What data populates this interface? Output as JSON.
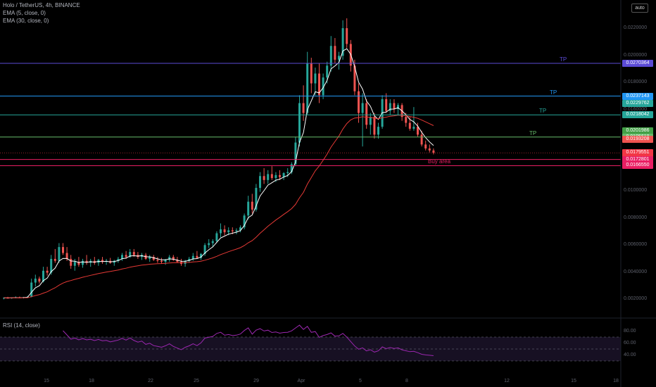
{
  "header": {
    "line1": "Holo / TetherUS, 4h, BINANCE",
    "line2": "EMA (5, close, 0)",
    "line3": "EMA (30, close, 0)",
    "scale_button": "auto"
  },
  "rsi_label": "RSI (14, close)",
  "annotations": {
    "tp": "TP",
    "buy_area": "Buy area"
  },
  "colors": {
    "up": "#26a69a",
    "down": "#ef5350",
    "ema_fast": "#ffffff",
    "ema_slow": "#e53935",
    "rsi": "#9c27b0",
    "tp1": "#5b4bd6",
    "tp2": "#2196f3",
    "tp3": "#26a69a",
    "tp4": "#66bb6a",
    "buy": "#e91e63"
  },
  "chart_data": {
    "type": "candlestick",
    "price_axis": {
      "ticks": [
        "0.0220000",
        "0.0200000",
        "0.0180000",
        "0.0160000",
        "0.0140000",
        "0.0120000",
        "0.0100000",
        "0.0080000",
        "0.0060000",
        "0.0040000",
        "0.0020000"
      ]
    },
    "x_ticks": [
      "15",
      "18",
      "22",
      "25",
      "29",
      "Apr",
      "5",
      "8",
      "12",
      "15",
      "18",
      "22"
    ],
    "levels": [
      {
        "label": "0.0270364",
        "value": 0.0270364,
        "color": "#5b4bd6",
        "line": true,
        "tp": true
      },
      {
        "label": "0.0237143",
        "value": 0.0237143,
        "color": "#2196f3",
        "line": true,
        "tp": true
      },
      {
        "label": "0.0229762",
        "value": 0.0229762,
        "color": "#26a69a",
        "line": false,
        "tp": false
      },
      {
        "label": "0.0218042",
        "value": 0.0218042,
        "color": "#26a69a",
        "line": true,
        "tp": true
      },
      {
        "label": "0.0201986",
        "value": 0.0201986,
        "color": "#43a047",
        "line": false,
        "tp": false
      },
      {
        "label": "0.0195618",
        "value": 0.0195618,
        "color": "#66bb6a",
        "line": true,
        "tp": true
      },
      {
        "label": "0.0193208",
        "value": 0.0193208,
        "color": "#ef5350",
        "line": false,
        "tp": false
      },
      {
        "label": "0.0179551",
        "sub": "18:43",
        "value": 0.0179551,
        "color": "#f23645",
        "line": false,
        "tp": false
      },
      {
        "label": "0.0172801",
        "value": 0.0172801,
        "color": "#e91e63",
        "line": true,
        "tp": false
      },
      {
        "label": "0.0166550",
        "value": 0.016655,
        "color": "#e91e63",
        "line": true,
        "tp": false
      }
    ],
    "rsi": {
      "levels": [
        70,
        50,
        30
      ],
      "tick_labels": [
        "80.00",
        "60.00",
        "40.00"
      ]
    },
    "candles": [
      [
        0.0032,
        0.0033,
        0.0031,
        0.00325
      ],
      [
        0.00325,
        0.00335,
        0.00318,
        0.00322
      ],
      [
        0.00322,
        0.0033,
        0.00315,
        0.00328
      ],
      [
        0.00328,
        0.0034,
        0.0032,
        0.0033
      ],
      [
        0.0033,
        0.00338,
        0.00322,
        0.00324
      ],
      [
        0.00324,
        0.00335,
        0.00318,
        0.00332
      ],
      [
        0.00332,
        0.00345,
        0.00325,
        0.00335
      ],
      [
        0.00335,
        0.0052,
        0.0033,
        0.0048
      ],
      [
        0.0048,
        0.0056,
        0.0044,
        0.0052
      ],
      [
        0.0052,
        0.0054,
        0.0047,
        0.0049
      ],
      [
        0.0049,
        0.0064,
        0.0048,
        0.006
      ],
      [
        0.006,
        0.0064,
        0.0055,
        0.0058
      ],
      [
        0.0058,
        0.0076,
        0.0056,
        0.0072
      ],
      [
        0.0072,
        0.0082,
        0.0068,
        0.007
      ],
      [
        0.007,
        0.0088,
        0.0068,
        0.0084
      ],
      [
        0.0084,
        0.0088,
        0.0076,
        0.0078
      ],
      [
        0.0078,
        0.0084,
        0.007,
        0.0072
      ],
      [
        0.0072,
        0.0076,
        0.0062,
        0.0065
      ],
      [
        0.0065,
        0.0072,
        0.006,
        0.0069
      ],
      [
        0.0069,
        0.0074,
        0.0064,
        0.0066
      ],
      [
        0.0066,
        0.0072,
        0.0063,
        0.007
      ],
      [
        0.007,
        0.0076,
        0.0066,
        0.0068
      ],
      [
        0.0068,
        0.0072,
        0.0064,
        0.007
      ],
      [
        0.007,
        0.0074,
        0.0066,
        0.0068
      ],
      [
        0.0068,
        0.0072,
        0.0065,
        0.0071
      ],
      [
        0.0071,
        0.0074,
        0.0067,
        0.0069
      ],
      [
        0.0069,
        0.0072,
        0.0066,
        0.007
      ],
      [
        0.007,
        0.0073,
        0.0067,
        0.0068
      ],
      [
        0.0068,
        0.0071,
        0.0065,
        0.007
      ],
      [
        0.007,
        0.0074,
        0.0068,
        0.0072
      ],
      [
        0.0072,
        0.0078,
        0.007,
        0.0076
      ],
      [
        0.0076,
        0.008,
        0.0072,
        0.0074
      ],
      [
        0.0074,
        0.0082,
        0.0073,
        0.0079
      ],
      [
        0.0079,
        0.0082,
        0.0074,
        0.0076
      ],
      [
        0.0076,
        0.0079,
        0.0072,
        0.0074
      ],
      [
        0.0074,
        0.0078,
        0.0071,
        0.0076
      ],
      [
        0.0076,
        0.0078,
        0.0071,
        0.0072
      ],
      [
        0.0072,
        0.0076,
        0.0069,
        0.0074
      ],
      [
        0.0074,
        0.0076,
        0.007,
        0.0071
      ],
      [
        0.0071,
        0.0074,
        0.0068,
        0.007
      ],
      [
        0.007,
        0.0073,
        0.0067,
        0.0069
      ],
      [
        0.0069,
        0.0072,
        0.0066,
        0.0071
      ],
      [
        0.0071,
        0.0076,
        0.0069,
        0.0074
      ],
      [
        0.0074,
        0.0076,
        0.007,
        0.0071
      ],
      [
        0.0071,
        0.0074,
        0.0068,
        0.0069
      ],
      [
        0.0069,
        0.0072,
        0.0065,
        0.0067
      ],
      [
        0.0067,
        0.0071,
        0.0064,
        0.007
      ],
      [
        0.007,
        0.0074,
        0.0068,
        0.0072
      ],
      [
        0.0072,
        0.0078,
        0.007,
        0.0075
      ],
      [
        0.0075,
        0.008,
        0.0072,
        0.0073
      ],
      [
        0.0073,
        0.0078,
        0.0071,
        0.0077
      ],
      [
        0.0077,
        0.0088,
        0.0075,
        0.0086
      ],
      [
        0.0086,
        0.0092,
        0.0083,
        0.0088
      ],
      [
        0.0088,
        0.0092,
        0.0084,
        0.009
      ],
      [
        0.009,
        0.01,
        0.0088,
        0.0098
      ],
      [
        0.0098,
        0.0108,
        0.0094,
        0.0102
      ],
      [
        0.0102,
        0.0106,
        0.0096,
        0.0099
      ],
      [
        0.0099,
        0.0104,
        0.0096,
        0.0101
      ],
      [
        0.0101,
        0.0104,
        0.0097,
        0.01
      ],
      [
        0.01,
        0.0103,
        0.0097,
        0.0101
      ],
      [
        0.0101,
        0.0106,
        0.0099,
        0.0104
      ],
      [
        0.0104,
        0.0118,
        0.0102,
        0.0116
      ],
      [
        0.0116,
        0.0136,
        0.0112,
        0.013
      ],
      [
        0.013,
        0.0138,
        0.0118,
        0.0122
      ],
      [
        0.0122,
        0.0148,
        0.012,
        0.0144
      ],
      [
        0.0144,
        0.016,
        0.014,
        0.0156
      ],
      [
        0.0156,
        0.0164,
        0.0148,
        0.0152
      ],
      [
        0.0152,
        0.0162,
        0.0148,
        0.0158
      ],
      [
        0.0158,
        0.0166,
        0.0152,
        0.0154
      ],
      [
        0.0154,
        0.016,
        0.015,
        0.0157
      ],
      [
        0.0157,
        0.0162,
        0.0152,
        0.0155
      ],
      [
        0.0155,
        0.016,
        0.0152,
        0.0159
      ],
      [
        0.0159,
        0.0164,
        0.0155,
        0.016
      ],
      [
        0.016,
        0.017,
        0.0158,
        0.0168
      ],
      [
        0.0168,
        0.0196,
        0.0166,
        0.019
      ],
      [
        0.019,
        0.0238,
        0.0186,
        0.023
      ],
      [
        0.023,
        0.0248,
        0.0212,
        0.022
      ],
      [
        0.022,
        0.0282,
        0.0218,
        0.027
      ],
      [
        0.027,
        0.0276,
        0.024,
        0.025
      ],
      [
        0.025,
        0.0266,
        0.0238,
        0.026
      ],
      [
        0.026,
        0.027,
        0.023,
        0.0238
      ],
      [
        0.0238,
        0.026,
        0.0234,
        0.0256
      ],
      [
        0.0256,
        0.0272,
        0.025,
        0.0268
      ],
      [
        0.0268,
        0.0298,
        0.0262,
        0.0288
      ],
      [
        0.0288,
        0.0296,
        0.027,
        0.0274
      ],
      [
        0.0274,
        0.0282,
        0.0264,
        0.0278
      ],
      [
        0.0278,
        0.0314,
        0.0274,
        0.0306
      ],
      [
        0.0306,
        0.0316,
        0.0286,
        0.029
      ],
      [
        0.029,
        0.0294,
        0.0262,
        0.0268
      ],
      [
        0.0268,
        0.0274,
        0.0238,
        0.0242
      ],
      [
        0.0242,
        0.025,
        0.021,
        0.022
      ],
      [
        0.022,
        0.024,
        0.0186,
        0.023
      ],
      [
        0.023,
        0.0234,
        0.0204,
        0.0208
      ],
      [
        0.0208,
        0.022,
        0.0198,
        0.0216
      ],
      [
        0.0216,
        0.022,
        0.0194,
        0.0198
      ],
      [
        0.0198,
        0.021,
        0.0194,
        0.0206
      ],
      [
        0.0206,
        0.0238,
        0.0204,
        0.0234
      ],
      [
        0.0234,
        0.024,
        0.022,
        0.0222
      ],
      [
        0.0222,
        0.0234,
        0.0218,
        0.023
      ],
      [
        0.023,
        0.0234,
        0.022,
        0.0224
      ],
      [
        0.0224,
        0.023,
        0.0218,
        0.0228
      ],
      [
        0.0228,
        0.023,
        0.0212,
        0.0216
      ],
      [
        0.0216,
        0.022,
        0.0206,
        0.021
      ],
      [
        0.021,
        0.0216,
        0.0202,
        0.0204
      ],
      [
        0.0204,
        0.0226,
        0.0202,
        0.0206
      ],
      [
        0.0206,
        0.021,
        0.0196,
        0.0198
      ],
      [
        0.0198,
        0.0202,
        0.0186,
        0.0188
      ],
      [
        0.0188,
        0.0192,
        0.0182,
        0.0184
      ],
      [
        0.0184,
        0.0188,
        0.018,
        0.0182
      ],
      [
        0.0182,
        0.0184,
        0.0178,
        0.01796
      ]
    ]
  }
}
